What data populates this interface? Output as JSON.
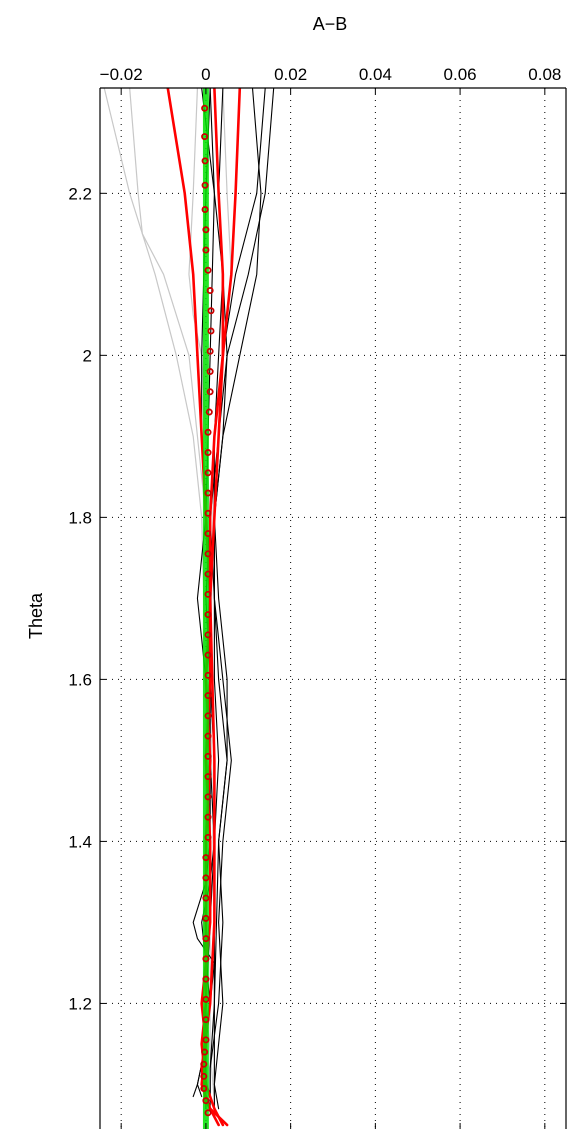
{
  "chart_data": {
    "type": "line",
    "title": "",
    "xlabel": "A−B",
    "ylabel": "Theta",
    "x_axis_position": "top",
    "xlim": [
      -0.025,
      0.085
    ],
    "ylim": [
      1.045,
      2.33
    ],
    "xticks": [
      -0.02,
      0,
      0.02,
      0.04,
      0.06,
      0.08
    ],
    "xtick_labels": [
      "−0.02",
      "0",
      "0.02",
      "0.04",
      "0.06",
      "0.08"
    ],
    "yticks": [
      1.2,
      1.4,
      1.6,
      1.8,
      2.0,
      2.2
    ],
    "ytick_labels": [
      "1.2",
      "1.4",
      "1.6",
      "1.8",
      "2",
      "2.2"
    ],
    "grid": true,
    "grid_style": "dotted",
    "colors": {
      "black_series": "#000000",
      "gray_series": "#c8c8c8",
      "red_series": "#ff0000",
      "green_band": "#00e000",
      "marker_edge": "#cc0000"
    },
    "series": [
      {
        "color": "#c8c8c8",
        "width": 1.2,
        "y": [
          1.08,
          1.2,
          1.4,
          1.6,
          1.8,
          1.9,
          2.0,
          2.1,
          2.2,
          2.33
        ],
        "x": [
          0.002,
          0.0,
          0.0,
          0.0,
          -0.001,
          -0.003,
          -0.007,
          -0.012,
          -0.018,
          -0.024
        ]
      },
      {
        "color": "#c8c8c8",
        "width": 1.2,
        "y": [
          1.08,
          1.2,
          1.4,
          1.6,
          1.8,
          1.9,
          2.0,
          2.1,
          2.15,
          2.2,
          2.33
        ],
        "x": [
          0.0,
          0.0,
          0.0,
          0.001,
          0.0,
          -0.002,
          -0.004,
          -0.01,
          -0.015,
          -0.016,
          -0.018
        ]
      },
      {
        "color": "#c8c8c8",
        "width": 1.2,
        "y": [
          1.08,
          1.3,
          1.6,
          1.8,
          1.9,
          2.0,
          2.05,
          2.1,
          2.2,
          2.33
        ],
        "x": [
          0.002,
          0.002,
          0.001,
          0.001,
          0.0,
          -0.001,
          -0.003,
          -0.004,
          -0.003,
          -0.002
        ]
      },
      {
        "color": "#c8c8c8",
        "width": 1.2,
        "y": [
          1.08,
          1.6,
          1.9,
          2.0,
          2.1,
          2.2,
          2.33
        ],
        "x": [
          0.001,
          0.001,
          0.002,
          0.004,
          0.006,
          0.005,
          0.004
        ]
      },
      {
        "color": "#000000",
        "width": 1.1,
        "y": [
          1.07,
          1.1,
          1.15,
          1.2,
          1.3,
          1.4,
          1.5,
          1.6,
          1.7,
          1.8,
          1.9,
          2.0,
          2.1,
          2.2,
          2.33
        ],
        "x": [
          0.003,
          0.002,
          0.003,
          0.004,
          0.003,
          0.004,
          0.006,
          0.004,
          0.002,
          0.002,
          0.004,
          0.005,
          0.004,
          0.002,
          0.001
        ]
      },
      {
        "color": "#000000",
        "width": 1.1,
        "y": [
          1.07,
          1.12,
          1.2,
          1.3,
          1.4,
          1.5,
          1.6,
          1.7,
          1.8,
          1.9,
          2.0,
          2.1,
          2.2,
          2.33
        ],
        "x": [
          0.001,
          0.001,
          0.002,
          0.002,
          0.002,
          0.003,
          0.002,
          0.002,
          0.002,
          0.004,
          0.008,
          0.012,
          0.013,
          0.011
        ]
      },
      {
        "color": "#000000",
        "width": 1.1,
        "y": [
          1.07,
          1.2,
          1.4,
          1.5,
          1.6,
          1.7,
          1.8,
          1.9,
          2.0,
          2.1,
          2.2,
          2.33
        ],
        "x": [
          0.002,
          0.002,
          0.003,
          0.005,
          0.003,
          0.002,
          0.001,
          0.003,
          0.005,
          0.01,
          0.014,
          0.016
        ]
      },
      {
        "color": "#000000",
        "width": 1.1,
        "y": [
          1.07,
          1.2,
          1.3,
          1.4,
          1.5,
          1.6,
          1.7,
          1.8,
          1.9,
          2.0,
          2.1,
          2.2,
          2.33
        ],
        "x": [
          0.0,
          0.0,
          0.001,
          0.002,
          0.002,
          0.001,
          0.0,
          0.001,
          0.002,
          0.004,
          0.007,
          0.012,
          0.014
        ]
      },
      {
        "color": "#000000",
        "width": 1.1,
        "y": [
          1.085,
          1.1,
          1.15,
          1.2,
          1.25,
          1.28,
          1.3,
          1.35,
          1.4,
          1.5,
          1.6,
          1.7,
          1.8,
          2.0,
          2.2,
          2.33
        ],
        "x": [
          -0.001,
          -0.002,
          0.0,
          0.001,
          0.002,
          -0.002,
          -0.003,
          0.0,
          0.001,
          0.001,
          0.0,
          -0.002,
          0.0,
          0.001,
          0.002,
          -0.001
        ]
      },
      {
        "color": "#000000",
        "width": 1.1,
        "y": [
          1.085,
          1.1,
          1.15,
          1.2,
          1.25,
          1.3,
          1.35,
          1.4,
          1.5,
          1.6,
          1.7,
          1.8,
          1.9,
          2.0,
          2.2,
          2.33
        ],
        "x": [
          -0.003,
          -0.002,
          0.0,
          0.001,
          0.0,
          -0.001,
          0.001,
          0.002,
          0.001,
          0.001,
          0.001,
          0.0,
          -0.001,
          -0.001,
          0.0,
          0.001
        ]
      },
      {
        "color": "#000000",
        "width": 1.1,
        "y": [
          1.085,
          1.12,
          1.2,
          1.3,
          1.4,
          1.5,
          1.6,
          1.7,
          1.8,
          1.9,
          2.0,
          2.1,
          2.2,
          2.33
        ],
        "x": [
          0.001,
          0.001,
          0.003,
          0.004,
          0.003,
          0.005,
          0.005,
          0.003,
          0.002,
          0.002,
          0.003,
          0.004,
          0.003,
          0.004
        ]
      },
      {
        "color": "#ff0000",
        "width": 2.6,
        "y": [
          1.05,
          1.07,
          1.1,
          1.15,
          1.2,
          1.3,
          1.4,
          1.5,
          1.6,
          1.7,
          1.8,
          1.9,
          2.0,
          2.1,
          2.2,
          2.33
        ],
        "x": [
          0.004,
          0.002,
          0.0,
          -0.001,
          0.0,
          0.0,
          0.0,
          0.001,
          0.0,
          0.001,
          0.001,
          0.002,
          0.004,
          0.006,
          0.007,
          0.008
        ]
      },
      {
        "color": "#ff0000",
        "width": 2.6,
        "y": [
          1.05,
          1.07,
          1.1,
          1.15,
          1.2,
          1.3,
          1.4,
          1.5,
          1.6,
          1.7,
          1.8,
          1.9,
          2.0,
          2.1,
          2.2,
          2.33
        ],
        "x": [
          0.005,
          0.001,
          -0.001,
          0.0,
          -0.001,
          0.001,
          0.001,
          0.0,
          0.001,
          0.001,
          0.0,
          -0.001,
          -0.002,
          -0.003,
          -0.005,
          -0.009
        ]
      },
      {
        "color": "#ff0000",
        "width": 2.6,
        "y": [
          1.05,
          1.08,
          1.12,
          1.2,
          1.3,
          1.5,
          1.7,
          1.8,
          1.9,
          2.0,
          2.1,
          2.2,
          2.33
        ],
        "x": [
          0.003,
          0.0,
          -0.001,
          0.001,
          0.002,
          0.002,
          0.001,
          0.002,
          0.003,
          0.004,
          0.004,
          0.003,
          0.002
        ]
      }
    ],
    "band": {
      "color": "#00e000",
      "x_lower": -0.0007,
      "x_upper": 0.0007,
      "y": [
        1.045,
        2.33
      ]
    },
    "markers": {
      "color": "#cc0000",
      "y": [
        1.065,
        1.08,
        1.095,
        1.11,
        1.125,
        1.14,
        1.155,
        1.18,
        1.205,
        1.23,
        1.255,
        1.28,
        1.305,
        1.33,
        1.355,
        1.38,
        1.405,
        1.43,
        1.455,
        1.48,
        1.505,
        1.53,
        1.555,
        1.58,
        1.605,
        1.63,
        1.655,
        1.68,
        1.705,
        1.73,
        1.755,
        1.78,
        1.805,
        1.83,
        1.855,
        1.88,
        1.905,
        1.93,
        1.955,
        1.98,
        2.005,
        2.03,
        2.055,
        2.08,
        2.105,
        2.13,
        2.155,
        2.18,
        2.21,
        2.24,
        2.27,
        2.305
      ],
      "x": [
        0.0005,
        0.0,
        -0.0005,
        -0.0005,
        -0.0005,
        -0.0003,
        0.0,
        0.0,
        0.0,
        0.0,
        0.0,
        0.0,
        0.0,
        0.0,
        0.0,
        0.0,
        0.0005,
        0.0005,
        0.0005,
        0.0005,
        0.0005,
        0.0005,
        0.0005,
        0.0005,
        0.0005,
        0.0005,
        0.0005,
        0.0005,
        0.0005,
        0.0005,
        0.0005,
        0.0005,
        0.0005,
        0.0005,
        0.0005,
        0.0005,
        0.0005,
        0.0008,
        0.001,
        0.001,
        0.001,
        0.0012,
        0.0012,
        0.001,
        0.0005,
        0.0,
        0.0,
        -0.0002,
        -0.0002,
        -0.0002,
        -0.0003,
        -0.0003
      ]
    }
  }
}
